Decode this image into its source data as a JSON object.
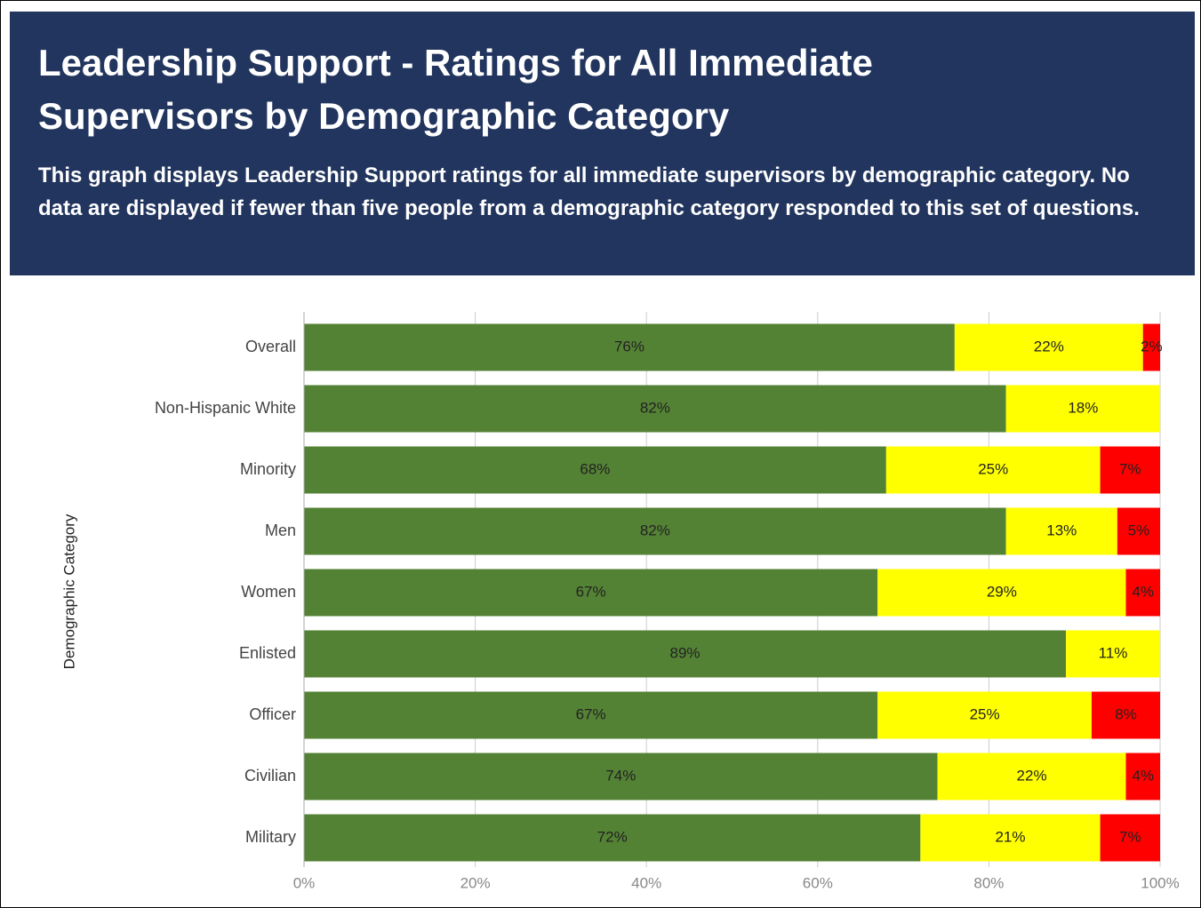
{
  "chart_data": {
    "type": "stacked_bar_horizontal",
    "title": "Leadership Support - Ratings for All Immediate Supervisors by Demographic Category",
    "subtitle": "This graph displays Leadership Support ratings for all immediate supervisors by demographic category.  No data are displayed if fewer than five people from a demographic category responded to this set of questions.",
    "y_label": "Demographic Category",
    "categories": [
      "Overall",
      "Non-Hispanic White",
      "Minority",
      "Men",
      "Women",
      "Enlisted",
      "Officer",
      "Civilian",
      "Military"
    ],
    "series": [
      {
        "color": "#548235",
        "values": [
          76,
          82,
          68,
          82,
          67,
          89,
          67,
          74,
          72
        ],
        "value_labels": [
          "76%",
          "82%",
          "68%",
          "82%",
          "67%",
          "89%",
          "67%",
          "74%",
          "72%"
        ]
      },
      {
        "color": "#ffff00",
        "values": [
          22,
          18,
          25,
          13,
          29,
          11,
          25,
          22,
          21
        ],
        "value_labels": [
          "22%",
          "18%",
          "25%",
          "13%",
          "29%",
          "11%",
          "25%",
          "22%",
          "21%"
        ]
      },
      {
        "color": "#ff0000",
        "values": [
          2,
          null,
          7,
          5,
          4,
          null,
          8,
          4,
          7
        ],
        "value_labels": [
          "2%",
          null,
          "7%",
          "5%",
          "4%",
          null,
          "8%",
          "4%",
          "7%"
        ]
      }
    ],
    "xlim": [
      0,
      100
    ],
    "xticks": [
      {
        "value": 0,
        "label": "0%"
      },
      {
        "value": 20,
        "label": "20%"
      },
      {
        "value": 40,
        "label": "40%"
      },
      {
        "value": 60,
        "label": "60%"
      },
      {
        "value": 80,
        "label": "80%"
      },
      {
        "value": 100,
        "label": "100%"
      }
    ],
    "grid": true
  }
}
